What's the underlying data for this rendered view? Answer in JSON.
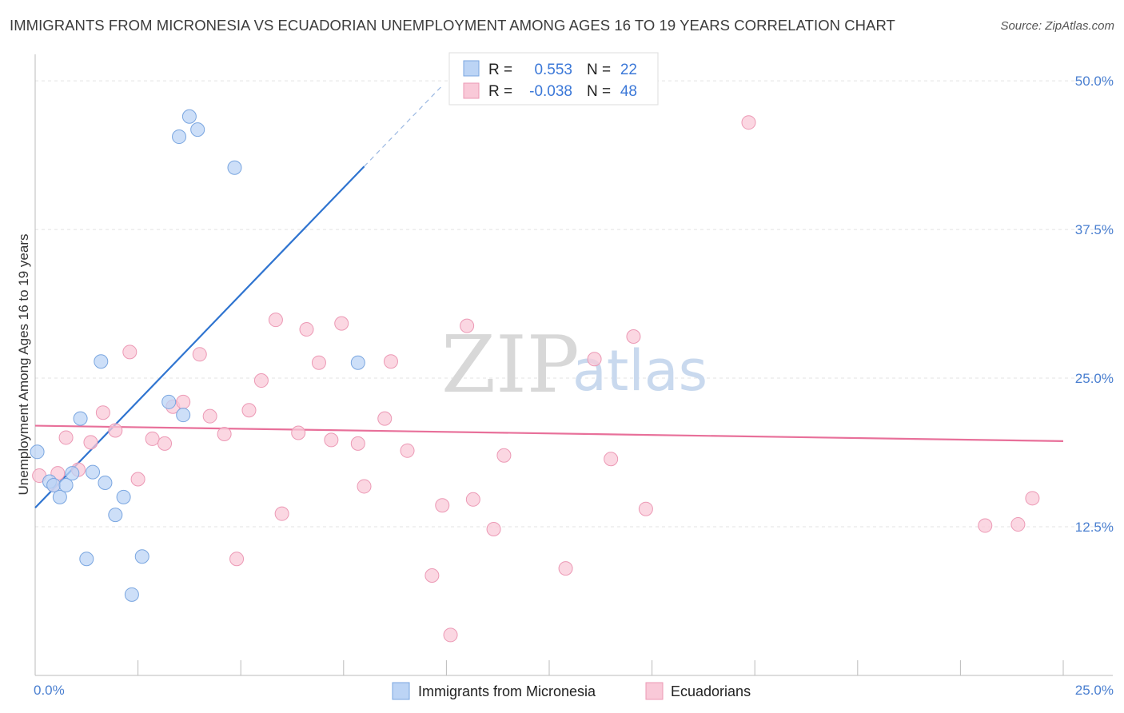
{
  "header": {
    "title": "IMMIGRANTS FROM MICRONESIA VS ECUADORIAN UNEMPLOYMENT AMONG AGES 16 TO 19 YEARS CORRELATION CHART",
    "source": "Source: ZipAtlas.com"
  },
  "watermark": {
    "zip": "ZIP",
    "atlas": "atlas"
  },
  "colors": {
    "blue_fill": "#bcd4f5",
    "blue_stroke": "#7aa6e0",
    "blue_line": "#2f74d0",
    "pink_fill": "#f9c9d8",
    "pink_stroke": "#ec99b5",
    "pink_line": "#e8709a",
    "tick_text": "#4a7fd0"
  },
  "chart_data": {
    "type": "scatter",
    "title": "IMMIGRANTS FROM MICRONESIA VS ECUADORIAN UNEMPLOYMENT AMONG AGES 16 TO 19 YEARS CORRELATION CHART",
    "xlabel": "",
    "ylabel": "Unemployment Among Ages 16 to 19 years",
    "xlim": [
      0,
      25
    ],
    "ylim": [
      0,
      51.5
    ],
    "x_tick_labels": [
      {
        "value": 0,
        "label": "0.0%"
      },
      {
        "value": 25,
        "label": "25.0%"
      }
    ],
    "y_tick_labels": [
      {
        "value": 12.5,
        "label": "12.5%"
      },
      {
        "value": 25,
        "label": "25.0%"
      },
      {
        "value": 37.5,
        "label": "37.5%"
      },
      {
        "value": 50,
        "label": "50.0%"
      }
    ],
    "grid": true,
    "legend_position": "bottom-center",
    "stats": [
      {
        "r_label": "R =",
        "r_value": "0.553",
        "n_label": "N =",
        "n_value": "22"
      },
      {
        "r_label": "R =",
        "r_value": "-0.038",
        "n_label": "N =",
        "n_value": "48"
      }
    ],
    "series": [
      {
        "name": "Immigrants from Micronesia",
        "color": "blue",
        "points": [
          [
            0.05,
            18.8
          ],
          [
            0.35,
            16.3
          ],
          [
            0.45,
            16.0
          ],
          [
            0.6,
            15.0
          ],
          [
            0.75,
            16.0
          ],
          [
            0.9,
            17.0
          ],
          [
            1.1,
            21.6
          ],
          [
            1.25,
            9.8
          ],
          [
            1.4,
            17.1
          ],
          [
            1.6,
            26.4
          ],
          [
            1.7,
            16.2
          ],
          [
            1.95,
            13.5
          ],
          [
            2.15,
            15.0
          ],
          [
            2.35,
            6.8
          ],
          [
            2.6,
            10.0
          ],
          [
            3.25,
            23.0
          ],
          [
            3.5,
            45.3
          ],
          [
            3.6,
            21.9
          ],
          [
            3.75,
            47.0
          ],
          [
            3.95,
            45.9
          ],
          [
            4.85,
            42.7
          ],
          [
            7.85,
            26.3
          ]
        ],
        "trend": {
          "x0": 0,
          "y0": 14.1,
          "x1": 8.0,
          "y1": 42.8,
          "dash_x1": 9.9,
          "dash_y1": 49.6
        }
      },
      {
        "name": "Ecuadorians",
        "color": "pink",
        "points": [
          [
            0.1,
            16.8
          ],
          [
            0.45,
            16.0
          ],
          [
            0.55,
            17.0
          ],
          [
            0.75,
            20.0
          ],
          [
            1.05,
            17.3
          ],
          [
            1.35,
            19.6
          ],
          [
            1.65,
            22.1
          ],
          [
            1.95,
            20.6
          ],
          [
            2.3,
            27.2
          ],
          [
            2.5,
            16.5
          ],
          [
            2.85,
            19.9
          ],
          [
            3.15,
            19.5
          ],
          [
            3.35,
            22.6
          ],
          [
            3.6,
            23.0
          ],
          [
            4.0,
            27.0
          ],
          [
            4.25,
            21.8
          ],
          [
            4.6,
            20.3
          ],
          [
            4.9,
            9.8
          ],
          [
            5.2,
            22.3
          ],
          [
            5.5,
            24.8
          ],
          [
            5.85,
            29.9
          ],
          [
            6.0,
            13.6
          ],
          [
            6.4,
            20.4
          ],
          [
            6.6,
            29.1
          ],
          [
            6.9,
            26.3
          ],
          [
            7.2,
            19.8
          ],
          [
            7.45,
            29.6
          ],
          [
            7.85,
            19.5
          ],
          [
            8.0,
            15.9
          ],
          [
            8.5,
            21.6
          ],
          [
            8.65,
            26.4
          ],
          [
            9.05,
            18.9
          ],
          [
            9.65,
            8.4
          ],
          [
            9.9,
            14.3
          ],
          [
            10.1,
            3.4
          ],
          [
            10.5,
            29.4
          ],
          [
            10.65,
            14.8
          ],
          [
            11.15,
            12.3
          ],
          [
            11.4,
            18.5
          ],
          [
            12.9,
            9.0
          ],
          [
            13.6,
            26.6
          ],
          [
            14.0,
            18.2
          ],
          [
            14.55,
            28.5
          ],
          [
            14.85,
            14.0
          ],
          [
            17.35,
            46.5
          ],
          [
            23.1,
            12.6
          ],
          [
            23.9,
            12.7
          ],
          [
            24.25,
            14.9
          ]
        ],
        "trend": {
          "x0": 0,
          "y0": 21.0,
          "x1": 25,
          "y1": 19.7
        }
      }
    ]
  }
}
